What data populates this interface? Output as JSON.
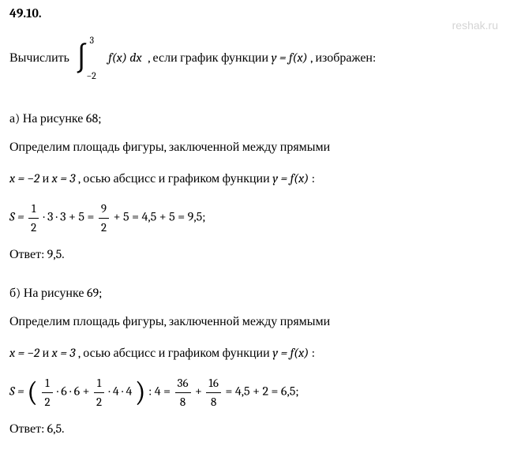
{
  "watermark": "reshak.ru",
  "problem_number": "49.10.",
  "main_prompt_prefix": "Вычислить ",
  "integral_upper": "3",
  "integral_lower": "−2",
  "integrand_fx": "f(x)",
  "integrand_dx": " dx",
  "main_prompt_suffix": " , если график функции ",
  "main_prompt_func": "y = f(x)",
  "main_prompt_end": ", изображен:",
  "part_a": {
    "label": "а) На рисунке 68;",
    "line1": "Определим площадь фигуры, заключенной между прямыми",
    "x_eq1": "x = −2",
    "line2_mid": " и ",
    "x_eq2": "x = 3",
    "line2_end": ", осью абсцисс и графиком функции ",
    "y_func": "y = f(x)",
    "line2_colon": ":",
    "formula_s": "S = ",
    "frac1_num": "1",
    "frac1_den": "2",
    "formula_mid1": " · 3 · 3 + 5 = ",
    "frac2_num": "9",
    "frac2_den": "2",
    "formula_mid2": " + 5 = 4,5 + 5 = 9,5;",
    "answer_label": "Ответ:  9,5."
  },
  "part_b": {
    "label": "б) На рисунке 69;",
    "line1": "Определим площадь фигуры, заключенной между прямыми",
    "x_eq1": "x = −2",
    "line2_mid": " и ",
    "x_eq2": "x = 3",
    "line2_end": ", осью абсцисс и графиком функции ",
    "y_func": "y = f(x)",
    "line2_colon": ":",
    "formula_s": "S = ",
    "frac1_num": "1",
    "frac1_den": "2",
    "formula_mid1": " · 6 · 6 + ",
    "frac2_num": "1",
    "frac2_den": "2",
    "formula_mid2": " · 4 · 4",
    "formula_div": " : 4 = ",
    "frac3_num": "36",
    "frac3_den": "8",
    "formula_plus": " + ",
    "frac4_num": "16",
    "frac4_den": "8",
    "formula_end": " = 4,5 + 2 = 6,5;",
    "answer_label": "Ответ:  6,5."
  }
}
